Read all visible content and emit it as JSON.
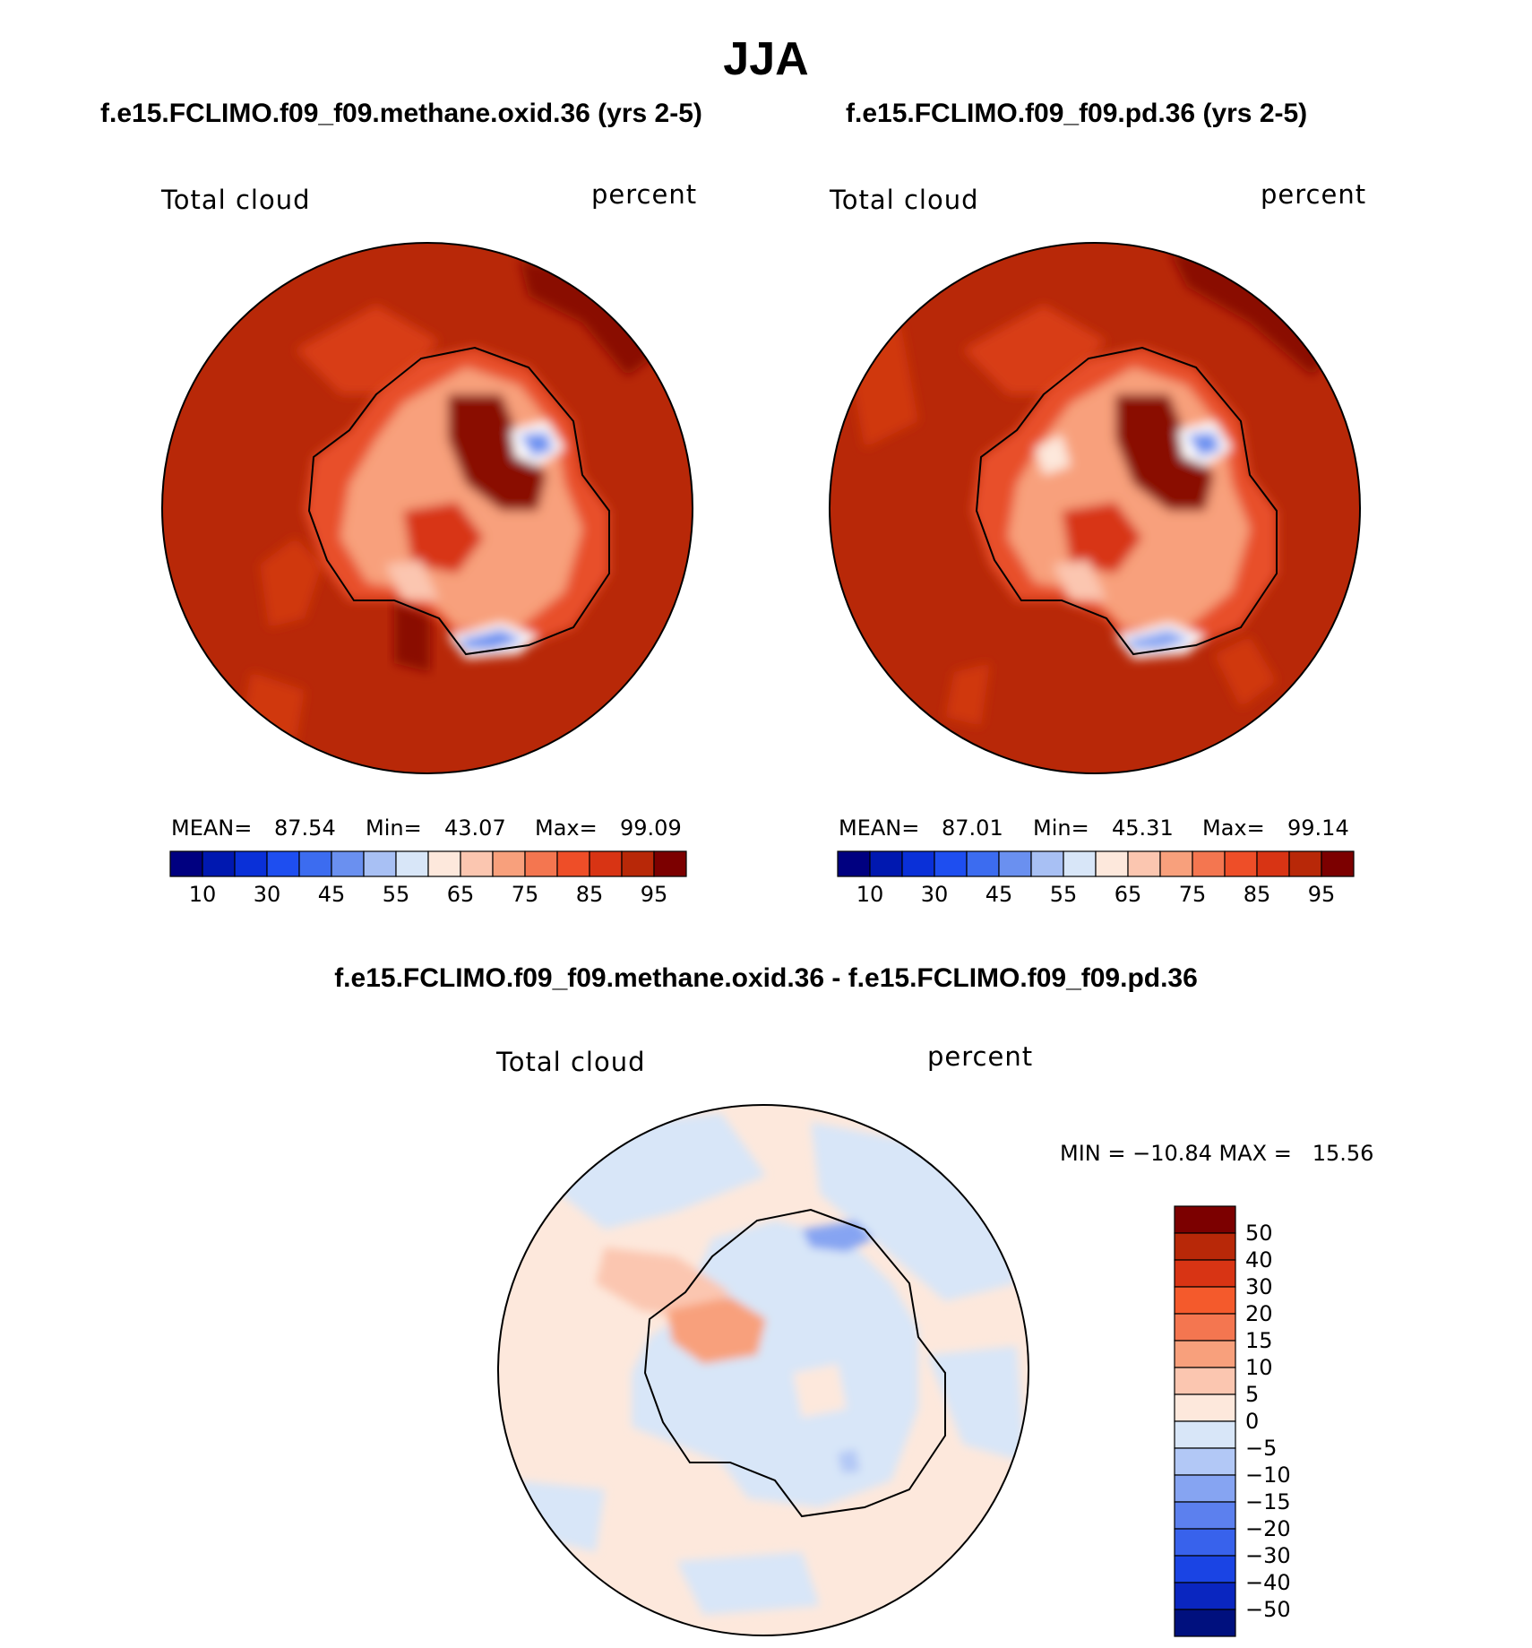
{
  "title": "JJA",
  "panels": [
    {
      "case": "f.e15.FCLIMO.f09_f09.methane.oxid.36 (yrs 2-5)",
      "variable": "Total cloud",
      "units": "percent",
      "stats": {
        "mean_label": "MEAN=",
        "mean": "87.54",
        "min_label": "Min=",
        "min": "43.07",
        "max_label": "Max=",
        "max": "99.09"
      }
    },
    {
      "case": "f.e15.FCLIMO.f09_f09.pd.36 (yrs 2-5)",
      "variable": "Total cloud",
      "units": "percent",
      "stats": {
        "mean_label": "MEAN=",
        "mean": "87.01",
        "min_label": "Min=",
        "min": "45.31",
        "max_label": "Max=",
        "max": "99.14"
      }
    }
  ],
  "abs_colorbar": {
    "colors": [
      "#000080",
      "#0018b0",
      "#0a30d8",
      "#1e4ef0",
      "#3c6cf0",
      "#6a90f0",
      "#a8c0f4",
      "#d8e6f8",
      "#fde8dc",
      "#fbc6b0",
      "#f8a07c",
      "#f47650",
      "#ee4e28",
      "#d83414",
      "#b82808",
      "#7c0000"
    ],
    "tick_labels": [
      "10",
      "30",
      "45",
      "55",
      "65",
      "75",
      "85",
      "95"
    ]
  },
  "diff_panel": {
    "case": "f.e15.FCLIMO.f09_f09.methane.oxid.36 - f.e15.FCLIMO.f09_f09.pd.36",
    "variable": "Total cloud",
    "units": "percent",
    "min_max": "MIN = −10.84 MAX =   15.56"
  },
  "diff_colorbar": {
    "colors": [
      "#7c0000",
      "#b82808",
      "#d83414",
      "#f45a2c",
      "#f47650",
      "#f8a07c",
      "#fbc6b0",
      "#fde8dc",
      "#d8e6f8",
      "#b2c8f6",
      "#86a4f2",
      "#5c80ee",
      "#3862ec",
      "#1a44e4",
      "#0a26c0",
      "#00107e"
    ],
    "tick_labels": [
      "50",
      "40",
      "30",
      "20",
      "15",
      "10",
      "5",
      "0",
      "−5",
      "−10",
      "−15",
      "−20",
      "−30",
      "−40",
      "−50"
    ]
  }
}
